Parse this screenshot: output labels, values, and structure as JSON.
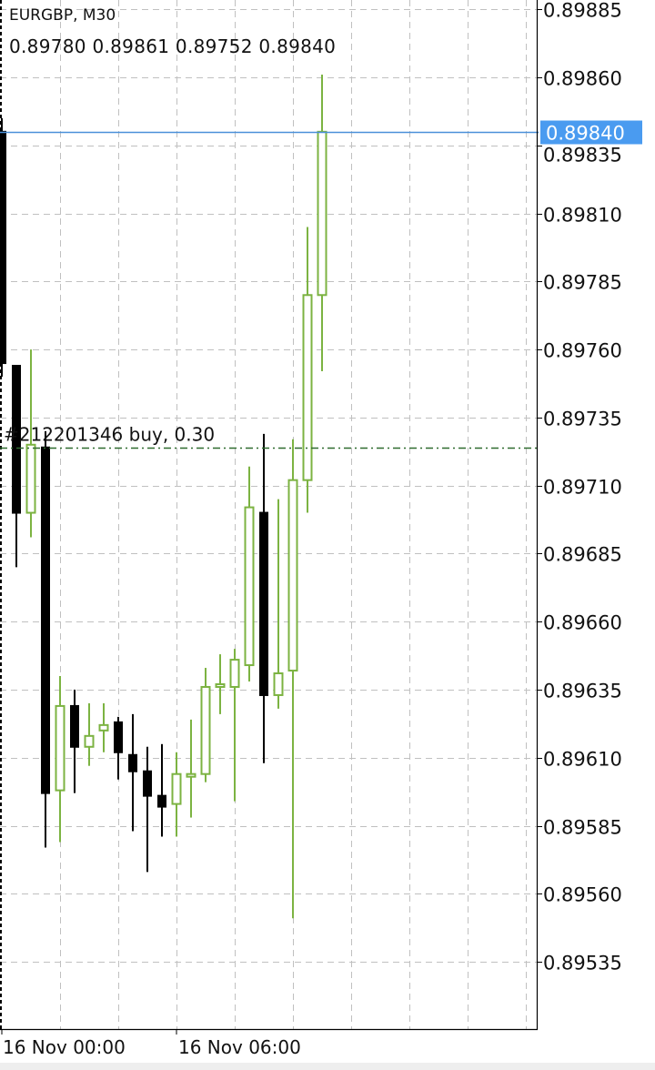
{
  "header": {
    "symbol_timeframe": "EURGBP, M30",
    "ohlc": "0.89780 0.89861 0.89752 0.89840"
  },
  "colors": {
    "bull": "#7cb342",
    "bear": "#000000",
    "bid_line": "#4a90d9",
    "bid_label_bg": "#4a9bf0",
    "order_line": "#2e6b2e",
    "grid": "#c0c0c0"
  },
  "chart_data": {
    "type": "candlestick",
    "title": "EURGBP, M30",
    "grid": true,
    "ylim": [
      0.8951,
      0.89888
    ],
    "y_ticks": [
      "0.89885",
      "0.89860",
      "0.89835",
      "0.89810",
      "0.89785",
      "0.89760",
      "0.89735",
      "0.89710",
      "0.89685",
      "0.89660",
      "0.89635",
      "0.89610",
      "0.89585",
      "0.89560",
      "0.89535"
    ],
    "x_tick_labels": [
      "16 Nov 00:00",
      "16 Nov 06:00"
    ],
    "current_price": {
      "value": 0.8984,
      "label": "0.89840"
    },
    "order_line": {
      "value": 0.89724,
      "label": "#212201346 buy, 0.30"
    },
    "candles": [
      {
        "o": 0.8984,
        "h": 0.89845,
        "l": 0.8975,
        "c": 0.89755
      },
      {
        "o": 0.89754,
        "h": 0.89754,
        "l": 0.8968,
        "c": 0.897
      },
      {
        "o": 0.897,
        "h": 0.8976,
        "l": 0.89691,
        "c": 0.89725
      },
      {
        "o": 0.89724,
        "h": 0.8973,
        "l": 0.89577,
        "c": 0.89597
      },
      {
        "o": 0.89598,
        "h": 0.8964,
        "l": 0.89579,
        "c": 0.89629
      },
      {
        "o": 0.89629,
        "h": 0.89635,
        "l": 0.89597,
        "c": 0.89614
      },
      {
        "o": 0.89614,
        "h": 0.8963,
        "l": 0.89607,
        "c": 0.89618
      },
      {
        "o": 0.8962,
        "h": 0.8963,
        "l": 0.89612,
        "c": 0.89622
      },
      {
        "o": 0.89623,
        "h": 0.89625,
        "l": 0.89602,
        "c": 0.89612
      },
      {
        "o": 0.89611,
        "h": 0.89626,
        "l": 0.89583,
        "c": 0.89605
      },
      {
        "o": 0.89605,
        "h": 0.89614,
        "l": 0.89568,
        "c": 0.89596
      },
      {
        "o": 0.89596,
        "h": 0.89615,
        "l": 0.89581,
        "c": 0.89592
      },
      {
        "o": 0.89593,
        "h": 0.89612,
        "l": 0.89581,
        "c": 0.89604
      },
      {
        "o": 0.89603,
        "h": 0.89624,
        "l": 0.89588,
        "c": 0.89604
      },
      {
        "o": 0.89604,
        "h": 0.89643,
        "l": 0.89601,
        "c": 0.89636
      },
      {
        "o": 0.89636,
        "h": 0.89648,
        "l": 0.89626,
        "c": 0.89637
      },
      {
        "o": 0.89636,
        "h": 0.8965,
        "l": 0.89594,
        "c": 0.89646
      },
      {
        "o": 0.89644,
        "h": 0.89717,
        "l": 0.89638,
        "c": 0.89702
      },
      {
        "o": 0.897,
        "h": 0.89729,
        "l": 0.89608,
        "c": 0.89633
      },
      {
        "o": 0.89633,
        "h": 0.89705,
        "l": 0.89628,
        "c": 0.89641
      },
      {
        "o": 0.89642,
        "h": 0.89727,
        "l": 0.89551,
        "c": 0.89712
      },
      {
        "o": 0.89712,
        "h": 0.89805,
        "l": 0.897,
        "c": 0.8978
      },
      {
        "o": 0.8978,
        "h": 0.89861,
        "l": 0.89752,
        "c": 0.8984
      }
    ]
  }
}
